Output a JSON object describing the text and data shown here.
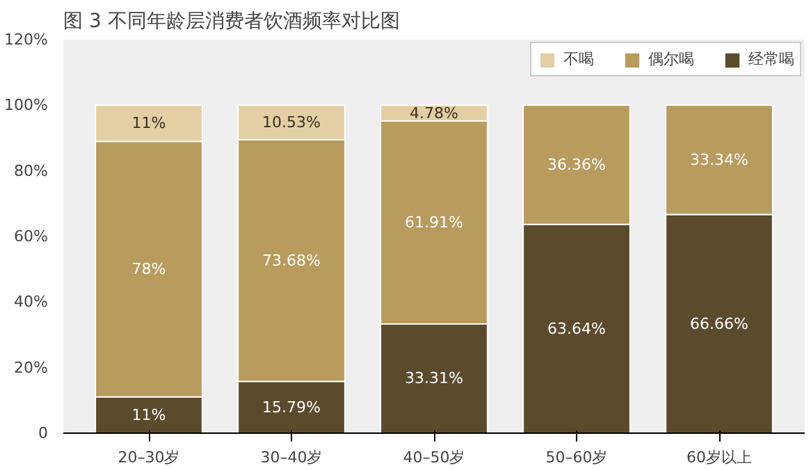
{
  "chart_data": {
    "type": "bar",
    "title": "图 3  不同年龄层消费者饮酒频率对比图",
    "categories": [
      "20–30岁",
      "30–40岁",
      "40–50岁",
      "50–60岁",
      "60岁以上"
    ],
    "stacked": true,
    "ylim": [
      0,
      120
    ],
    "yticks": [
      {
        "value": 0,
        "label": "0"
      },
      {
        "value": 20,
        "label": "20%"
      },
      {
        "value": 40,
        "label": "40%"
      },
      {
        "value": 60,
        "label": "60%"
      },
      {
        "value": 80,
        "label": "80%"
      },
      {
        "value": 100,
        "label": "100%"
      },
      {
        "value": 120,
        "label": "120%"
      }
    ],
    "grid": false,
    "legend": "top right",
    "series": [
      {
        "name": "经常喝",
        "color": "#5b4a2c",
        "values": [
          11,
          15.79,
          33.31,
          63.64,
          66.66
        ],
        "value_labels": [
          "11%",
          "15.79%",
          "33.31%",
          "63.64%",
          "66.66%"
        ]
      },
      {
        "name": "偶尔喝",
        "color": "#b99b5e",
        "values": [
          78,
          73.68,
          61.91,
          36.36,
          33.34
        ],
        "value_labels": [
          "78%",
          "73.68%",
          "61.91%",
          "36.36%",
          "33.34%"
        ]
      },
      {
        "name": "不喝",
        "color": "#e4cfa4",
        "values": [
          11,
          10.53,
          4.78,
          null,
          null
        ],
        "value_labels": [
          "11%",
          "10.53%",
          "4.78%",
          null,
          null
        ]
      }
    ]
  }
}
